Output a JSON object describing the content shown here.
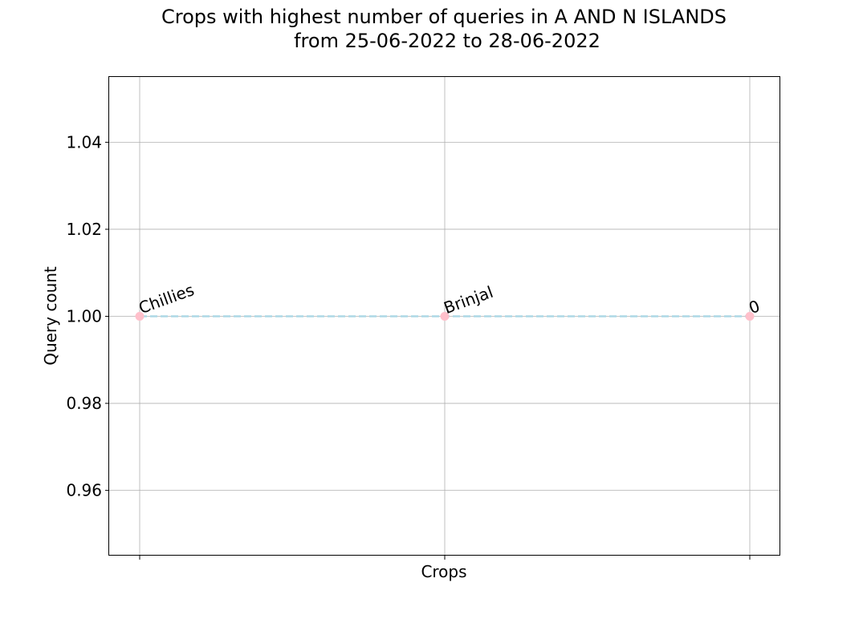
{
  "chart_data": {
    "type": "line",
    "title_line1": "Crops with highest number of queries in A AND N ISLANDS",
    "title_line2": "from 25-06-2022 to 28-06-2022",
    "xlabel": "Crops",
    "ylabel": "Query count",
    "categories": [
      "Chillies",
      "Brinjal",
      "0"
    ],
    "values": [
      1,
      1,
      1
    ],
    "point_labels": [
      "Chillies",
      "Brinjal",
      "0"
    ],
    "ylim": [
      0.945,
      1.055
    ],
    "yticks": [
      0.96,
      0.98,
      1.0,
      1.02,
      1.04
    ],
    "ytick_labels": [
      "0.96",
      "0.98",
      "1.00",
      "1.02",
      "1.04"
    ],
    "grid": true,
    "line_style": "dashed",
    "line_color": "#add8e6",
    "marker_color": "#ffc0cb"
  }
}
